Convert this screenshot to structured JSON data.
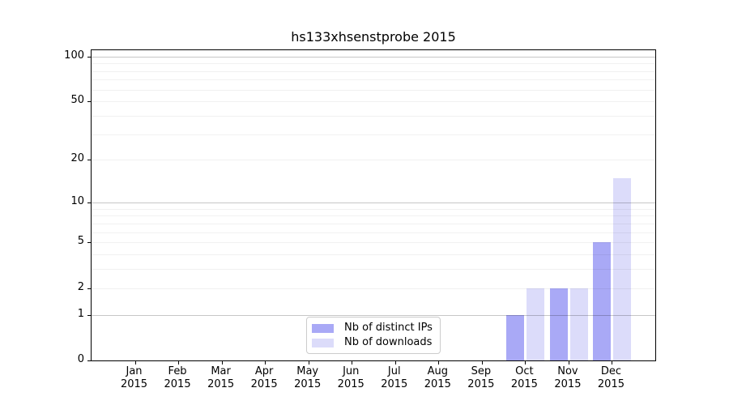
{
  "chart_data": {
    "type": "bar",
    "title": "hs133xhsenstprobe 2015",
    "categories": [
      "Jan 2015",
      "Feb 2015",
      "Mar 2015",
      "Apr 2015",
      "May 2015",
      "Jun 2015",
      "Jul 2015",
      "Aug 2015",
      "Sep 2015",
      "Oct 2015",
      "Nov 2015",
      "Dec 2015"
    ],
    "series": [
      {
        "name": "Nb of distinct IPs",
        "color": "#a9a9f6",
        "values": [
          0,
          0,
          0,
          0,
          0,
          0,
          0,
          0,
          0,
          1,
          2,
          5
        ]
      },
      {
        "name": "Nb of downloads",
        "color": "#dcdcfa",
        "values": [
          0,
          0,
          0,
          0,
          0,
          0,
          0,
          0,
          0,
          2,
          2,
          15
        ]
      }
    ],
    "y_ticks": [
      0,
      1,
      2,
      5,
      10,
      20,
      50,
      100
    ],
    "ylim": [
      0,
      110
    ],
    "y_scale": "log1p",
    "grid": "horizontal minor+major, drawn above bars",
    "legend_position": "lower center",
    "axis_color": "#000000",
    "background_color": "#ffffff"
  }
}
